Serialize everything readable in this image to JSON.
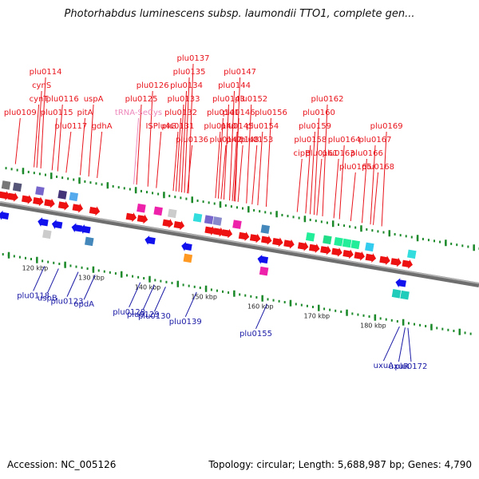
{
  "title": "Photorhabdus luminescens subsp. laumondii TTO1, complete gen...",
  "footer": {
    "accession": "Accession: NC_005126",
    "topology": "Topology: circular; Length: 5,688,987 bp; Genes: 4,790"
  },
  "colors": {
    "forward_label": "#e8141c",
    "reverse_label": "#1a1aa6",
    "rna_label": "#ee88bb",
    "axis": "#8a8a8a",
    "tick": "#1c8a2a"
  },
  "scale": {
    "start_kbp": 112,
    "end_kbp": 197,
    "tick_labels": [
      "120 kbp",
      "130 kbp",
      "140 kbp",
      "150 kbp",
      "160 kbp",
      "170 kbp",
      "180 kbp"
    ]
  },
  "forward_labels": [
    {
      "text": "plu0114",
      "kbp": 118.0,
      "tier": 1
    },
    {
      "text": "cynS",
      "kbp": 117.3,
      "tier": 2
    },
    {
      "text": "cynT",
      "kbp": 116.8,
      "tier": 3
    },
    {
      "text": "plu0109",
      "kbp": 113.5,
      "tier": 4
    },
    {
      "text": "plu0116",
      "kbp": 121.0,
      "tier": 3
    },
    {
      "text": "plu0115",
      "kbp": 120.0,
      "tier": 4
    },
    {
      "text": "plu0117",
      "kbp": 122.5,
      "tier": 5
    },
    {
      "text": "uspA",
      "kbp": 126.5,
      "tier": 3
    },
    {
      "text": "pitA",
      "kbp": 125.0,
      "tier": 4
    },
    {
      "text": "gdhA",
      "kbp": 128.0,
      "tier": 5
    },
    {
      "text": "plu0126",
      "kbp": 137.0,
      "tier": 2
    },
    {
      "text": "plu0125",
      "kbp": 135.0,
      "tier": 3
    },
    {
      "text": "ISPlu4G",
      "kbp": 138.5,
      "tier": 5
    },
    {
      "text": "plu0137",
      "kbp": 144.2,
      "tier": 0
    },
    {
      "text": "plu0135",
      "kbp": 143.5,
      "tier": 1
    },
    {
      "text": "plu0134",
      "kbp": 143.0,
      "tier": 2
    },
    {
      "text": "plu0133",
      "kbp": 142.5,
      "tier": 3
    },
    {
      "text": "plu0132",
      "kbp": 142.0,
      "tier": 4
    },
    {
      "text": "plu0131",
      "kbp": 141.5,
      "tier": 5
    },
    {
      "text": "plu0136",
      "kbp": 144.0,
      "tier": 6
    },
    {
      "text": "plu0147",
      "kbp": 152.5,
      "tier": 1
    },
    {
      "text": "plu0144",
      "kbp": 151.5,
      "tier": 2
    },
    {
      "text": "plu0143",
      "kbp": 150.5,
      "tier": 3
    },
    {
      "text": "plu0152",
      "kbp": 154.5,
      "tier": 3
    },
    {
      "text": "plu0141",
      "kbp": 149.5,
      "tier": 4
    },
    {
      "text": "plu0146",
      "kbp": 152.3,
      "tier": 4
    },
    {
      "text": "plu0145",
      "kbp": 152.0,
      "tier": 5
    },
    {
      "text": "plu0140",
      "kbp": 149.0,
      "tier": 5
    },
    {
      "text": "plu0148",
      "kbp": 153.0,
      "tier": 6
    },
    {
      "text": "plu0142",
      "kbp": 150.0,
      "tier": 6
    },
    {
      "text": "plu0156",
      "kbp": 158.0,
      "tier": 4
    },
    {
      "text": "plu0154",
      "kbp": 156.5,
      "tier": 5
    },
    {
      "text": "plu0153",
      "kbp": 155.5,
      "tier": 6
    },
    {
      "text": "plu0162",
      "kbp": 168.0,
      "tier": 3
    },
    {
      "text": "plu0160",
      "kbp": 166.5,
      "tier": 4
    },
    {
      "text": "plu0159",
      "kbp": 165.8,
      "tier": 5
    },
    {
      "text": "plu0158",
      "kbp": 165.0,
      "tier": 6
    },
    {
      "text": "cipB",
      "kbp": 163.5,
      "tier": 7
    },
    {
      "text": "plu0161",
      "kbp": 167.0,
      "tier": 7
    },
    {
      "text": "plu0164",
      "kbp": 171.0,
      "tier": 6
    },
    {
      "text": "plu0169",
      "kbp": 178.5,
      "tier": 5
    },
    {
      "text": "plu0163",
      "kbp": 170.0,
      "tier": 7
    },
    {
      "text": "plu0167",
      "kbp": 176.5,
      "tier": 6
    },
    {
      "text": "plu0166",
      "kbp": 175.0,
      "tier": 7
    },
    {
      "text": "plu0165",
      "kbp": 173.0,
      "tier": 8
    },
    {
      "text": "plu0168",
      "kbp": 177.0,
      "tier": 8
    }
  ],
  "rna_labels": [
    {
      "text": "tRNA-SeCys",
      "kbp": 134.5,
      "tier": 4
    }
  ],
  "reverse_labels": [
    {
      "text": "plu0118",
      "kbp": 121.5,
      "row": 0
    },
    {
      "text": "uspB",
      "kbp": 124.0,
      "row": 1
    },
    {
      "text": "plu0123",
      "kbp": 127.5,
      "row": 2
    },
    {
      "text": "opdA",
      "kbp": 130.5,
      "row": 3
    },
    {
      "text": "plu0128",
      "kbp": 138.5,
      "row": 4
    },
    {
      "text": "plu0129",
      "kbp": 141.0,
      "row": 5
    },
    {
      "text": "plu0130",
      "kbp": 143.0,
      "row": 6
    },
    {
      "text": "plu0139",
      "kbp": 148.5,
      "row": 7
    },
    {
      "text": "plu0155",
      "kbp": 161.0,
      "row": 8
    },
    {
      "text": "uxuA",
      "kbp": 184.5,
      "row": 9
    },
    {
      "text": "uxuR",
      "kbp": 185.5,
      "row": 10
    },
    {
      "text": "plu0172",
      "kbp": 186.0,
      "row": 11
    }
  ],
  "forward_features": [
    {
      "kbp": 112.5,
      "type": "arrow",
      "color": "red"
    },
    {
      "kbp": 114.0,
      "type": "arrow",
      "color": "red"
    },
    {
      "kbp": 116.5,
      "type": "arrow",
      "color": "red"
    },
    {
      "kbp": 118.5,
      "type": "arrow",
      "color": "red"
    },
    {
      "kbp": 120.5,
      "type": "arrow",
      "color": "red"
    },
    {
      "kbp": 123.0,
      "type": "arrow",
      "color": "red"
    },
    {
      "kbp": 125.5,
      "type": "arrow",
      "color": "red"
    },
    {
      "kbp": 128.5,
      "type": "arrow",
      "color": "red"
    },
    {
      "kbp": 135.0,
      "type": "arrow",
      "color": "red"
    },
    {
      "kbp": 137.0,
      "type": "arrow",
      "color": "red"
    },
    {
      "kbp": 141.5,
      "type": "arrow",
      "color": "red"
    },
    {
      "kbp": 143.5,
      "type": "arrow",
      "color": "red"
    },
    {
      "kbp": 149.0,
      "type": "arrow",
      "color": "red"
    },
    {
      "kbp": 150.5,
      "type": "arrow",
      "color": "red"
    },
    {
      "kbp": 152.0,
      "type": "arrow",
      "color": "red"
    },
    {
      "kbp": 155.0,
      "type": "arrow",
      "color": "red"
    },
    {
      "kbp": 157.0,
      "type": "arrow",
      "color": "red"
    },
    {
      "kbp": 159.0,
      "type": "arrow",
      "color": "red"
    },
    {
      "kbp": 161.0,
      "type": "arrow",
      "color": "red"
    },
    {
      "kbp": 163.0,
      "type": "arrow",
      "color": "red"
    },
    {
      "kbp": 165.5,
      "type": "arrow",
      "color": "red"
    },
    {
      "kbp": 167.5,
      "type": "arrow",
      "color": "red"
    },
    {
      "kbp": 169.5,
      "type": "arrow",
      "color": "red"
    },
    {
      "kbp": 171.5,
      "type": "arrow",
      "color": "red"
    },
    {
      "kbp": 173.5,
      "type": "arrow",
      "color": "red"
    },
    {
      "kbp": 175.5,
      "type": "arrow",
      "color": "red"
    },
    {
      "kbp": 177.5,
      "type": "arrow",
      "color": "red"
    },
    {
      "kbp": 180.0,
      "type": "arrow",
      "color": "red"
    },
    {
      "kbp": 182.0,
      "type": "arrow",
      "color": "red"
    },
    {
      "kbp": 184.0,
      "type": "arrow",
      "color": "red"
    },
    {
      "kbp": 112.5,
      "type": "box",
      "color": "#777777"
    },
    {
      "kbp": 114.5,
      "type": "box",
      "color": "#555577"
    },
    {
      "kbp": 118.5,
      "type": "box",
      "color": "#7766cc"
    },
    {
      "kbp": 122.5,
      "type": "box",
      "color": "#443377"
    },
    {
      "kbp": 124.5,
      "type": "box",
      "color": "#55aaee"
    },
    {
      "kbp": 136.5,
      "type": "box",
      "color": "#ee22aa"
    },
    {
      "kbp": 139.5,
      "type": "box",
      "color": "#ee22aa"
    },
    {
      "kbp": 142.0,
      "type": "box",
      "color": "#cccccc"
    },
    {
      "kbp": 146.5,
      "type": "box",
      "color": "#33dddd"
    },
    {
      "kbp": 148.5,
      "type": "box",
      "color": "#7766cc"
    },
    {
      "kbp": 150.0,
      "type": "box",
      "color": "#8888cc"
    },
    {
      "kbp": 153.5,
      "type": "box",
      "color": "#ee22aa"
    },
    {
      "kbp": 158.5,
      "type": "box",
      "color": "#4488bb"
    },
    {
      "kbp": 166.5,
      "type": "box",
      "color": "#22ee99"
    },
    {
      "kbp": 169.5,
      "type": "box",
      "color": "#22dd88"
    },
    {
      "kbp": 171.5,
      "type": "box",
      "color": "#22ee99"
    },
    {
      "kbp": 173.0,
      "type": "box",
      "color": "#22ee99"
    },
    {
      "kbp": 174.5,
      "type": "box",
      "color": "#22ee99"
    },
    {
      "kbp": 177.0,
      "type": "box",
      "color": "#33ccee"
    },
    {
      "kbp": 184.5,
      "type": "box",
      "color": "#33dddd"
    }
  ],
  "reverse_features": [
    {
      "kbp": 113.0,
      "type": "arrow",
      "color": "blue"
    },
    {
      "kbp": 120.0,
      "type": "arrow",
      "color": "blue"
    },
    {
      "kbp": 122.5,
      "type": "arrow",
      "color": "blue"
    },
    {
      "kbp": 126.0,
      "type": "arrow",
      "color": "blue"
    },
    {
      "kbp": 127.5,
      "type": "arrow",
      "color": "blue"
    },
    {
      "kbp": 139.0,
      "type": "arrow",
      "color": "blue"
    },
    {
      "kbp": 145.5,
      "type": "arrow",
      "color": "blue"
    },
    {
      "kbp": 159.0,
      "type": "arrow",
      "color": "blue"
    },
    {
      "kbp": 183.5,
      "type": "arrow",
      "color": "blue"
    },
    {
      "kbp": 121.0,
      "type": "box",
      "color": "#cccccc"
    },
    {
      "kbp": 128.5,
      "type": "box",
      "color": "#4488bb"
    },
    {
      "kbp": 146.0,
      "type": "box",
      "color": "#ff9922"
    },
    {
      "kbp": 159.5,
      "type": "box",
      "color": "#ee22aa"
    },
    {
      "kbp": 183.0,
      "type": "box",
      "color": "#22ccbb"
    },
    {
      "kbp": 184.5,
      "type": "box",
      "color": "#22ccbb"
    }
  ]
}
